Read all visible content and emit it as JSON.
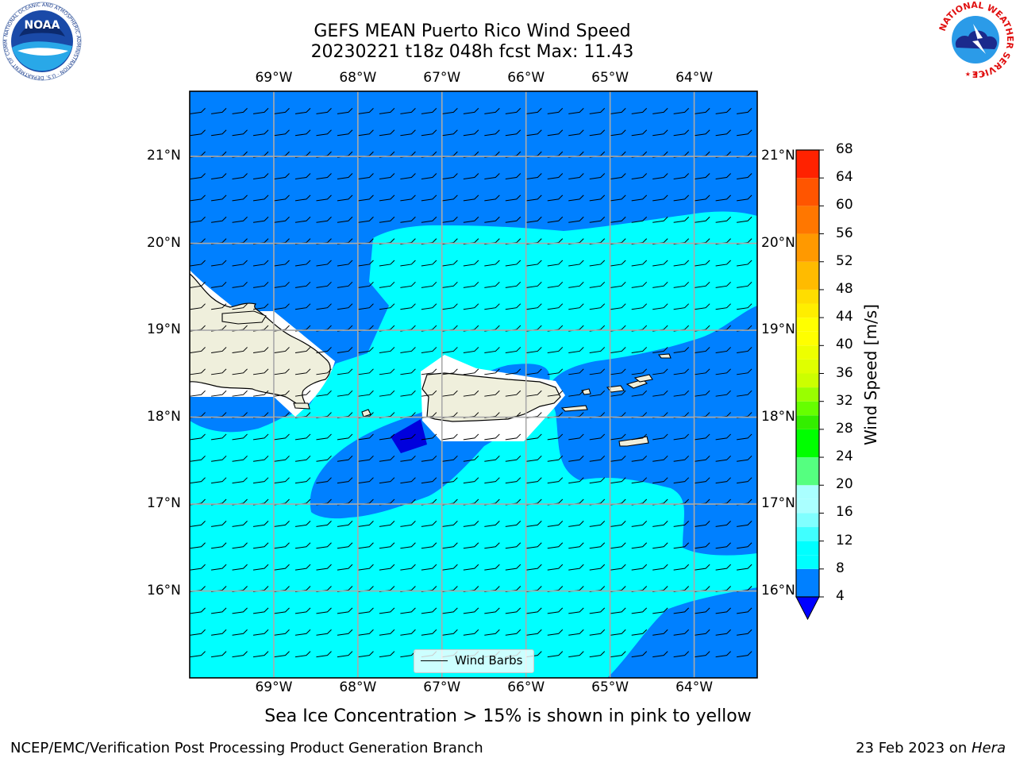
{
  "title": {
    "line1": "GEFS MEAN Puerto Rico Wind Speed",
    "line2": "20230221 t18z 048h fcst   Max: 11.43"
  },
  "map": {
    "longitude_labels": [
      "69°W",
      "68°W",
      "67°W",
      "66°W",
      "65°W",
      "64°W"
    ],
    "latitude_labels": [
      "21°N",
      "20°N",
      "19°N",
      "18°N",
      "17°N",
      "16°N"
    ],
    "longitudes": [
      -69,
      -68,
      -67,
      -66,
      -65,
      -64
    ],
    "latitudes": [
      21,
      20,
      19,
      18,
      17,
      16
    ],
    "extent": {
      "lon_min": -70,
      "lon_max": -63.25,
      "lat_min": 15,
      "lat_max": 21.75
    },
    "land_color": "#efefdc",
    "legend_label": "Wind Barbs",
    "barbs": {
      "row_lat_top": 21.5,
      "row_spacing_deg": 0.25,
      "col_spacing_deg": 0.25,
      "wind_direction": "east"
    }
  },
  "colorbar": {
    "label": "Wind Speed [m/s]",
    "tick_labels": [
      "68",
      "64",
      "60",
      "56",
      "52",
      "48",
      "44",
      "40",
      "36",
      "32",
      "28",
      "24",
      "20",
      "16",
      "12",
      "8",
      "4"
    ],
    "levels": [
      4,
      8,
      10,
      12,
      14,
      16,
      18,
      20,
      24,
      28,
      30,
      32,
      34,
      36,
      38,
      40,
      42,
      44,
      46,
      48,
      52,
      56,
      60,
      64,
      68
    ],
    "colors": [
      "#0080ff",
      "#00ffff",
      "#00ffff",
      "#40ffff",
      "#80ffff",
      "#aaffff",
      "#aaffff",
      "#55ff80",
      "#00ff00",
      "#33ee00",
      "#66ff00",
      "#99ff00",
      "#ccff00",
      "#dfff00",
      "#eeff00",
      "#ffff00",
      "#ffff00",
      "#ffee00",
      "#ffdd00",
      "#ffbb00",
      "#ff9900",
      "#ff7700",
      "#ff5500",
      "#ff2200",
      "#ff0000"
    ],
    "under_color": "#0000ff"
  },
  "contour_colors": {
    "lt8": "#0080ff",
    "8to12": "#00ffff",
    "lt4": "#0000dd"
  },
  "subtitle": "Sea Ice Concentration > 15% is shown in pink to yellow",
  "footer": {
    "left": "NCEP/EMC/Verification Post Processing Product Generation Branch",
    "right_prefix": "23 Feb 2023 on ",
    "right_host": "Hera"
  },
  "logos": {
    "noaa": {
      "text": "NOAA",
      "ring_text": "NATIONAL OCEANIC AND ATMOSPHERIC ADMINISTRATION · U.S. DEPARTMENT OF COMMERCE"
    },
    "nws": {
      "ring_text": "NATIONAL WEATHER SERVICE"
    }
  }
}
